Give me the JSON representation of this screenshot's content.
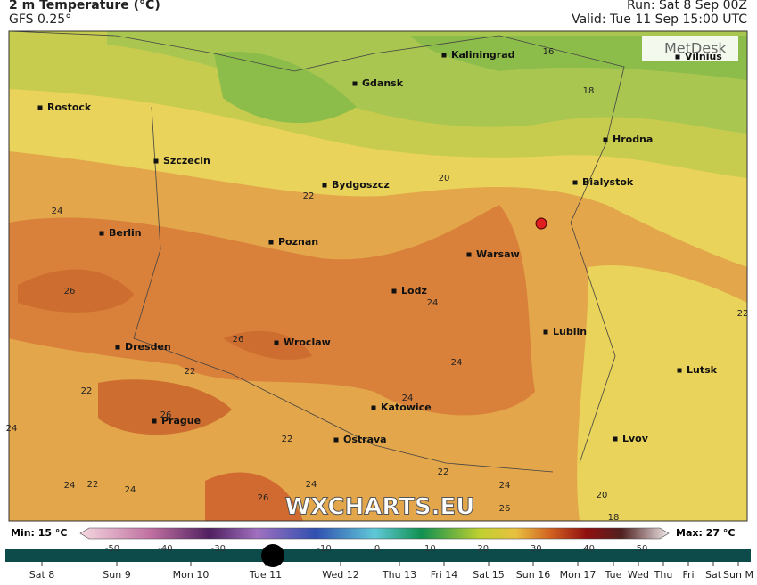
{
  "header": {
    "title": "2 m Temperature (°C)",
    "model": "GFS 0.25°",
    "run": "Run: Sat 8 Sep 00Z",
    "valid": "Valid: Tue 11 Sep 15:00 UTC"
  },
  "map": {
    "logo": "MetDesk",
    "watermark": "WXCHARTS.EU",
    "cities": [
      "Kaliningrad",
      "Vilnius",
      "Gdansk",
      "Rostock",
      "Hrodna",
      "Szczecin",
      "Bydgoszcz",
      "Bialystok",
      "Berlin",
      "Poznan",
      "Warsaw",
      "Lodz",
      "Lublin",
      "Dresden",
      "Wroclaw",
      "Lutsk",
      "Katowice",
      "Prague",
      "Ostrava",
      "Lvov"
    ],
    "contour_labels": [
      16,
      18,
      20,
      22,
      24,
      26,
      24,
      24,
      26,
      22,
      22,
      26,
      24,
      22,
      24,
      22,
      24,
      22,
      24,
      24,
      26,
      24,
      26,
      20,
      18,
      22
    ]
  },
  "legend": {
    "min": "Min: 15 °C",
    "max": "Max: 27 °C",
    "ticks": [
      -50,
      -40,
      -30,
      -20,
      -10,
      0,
      10,
      20,
      30,
      40,
      50
    ]
  },
  "timeline": {
    "days": [
      "Sat 8",
      "Sun 9",
      "Mon 10",
      "Tue 11",
      "Wed 12",
      "Thu 13",
      "Fri 14",
      "Sat 15",
      "Sun 16",
      "Mon 17",
      "Tue",
      "Wed",
      "Thu",
      "Fri",
      "Sat",
      "Sun M"
    ]
  }
}
